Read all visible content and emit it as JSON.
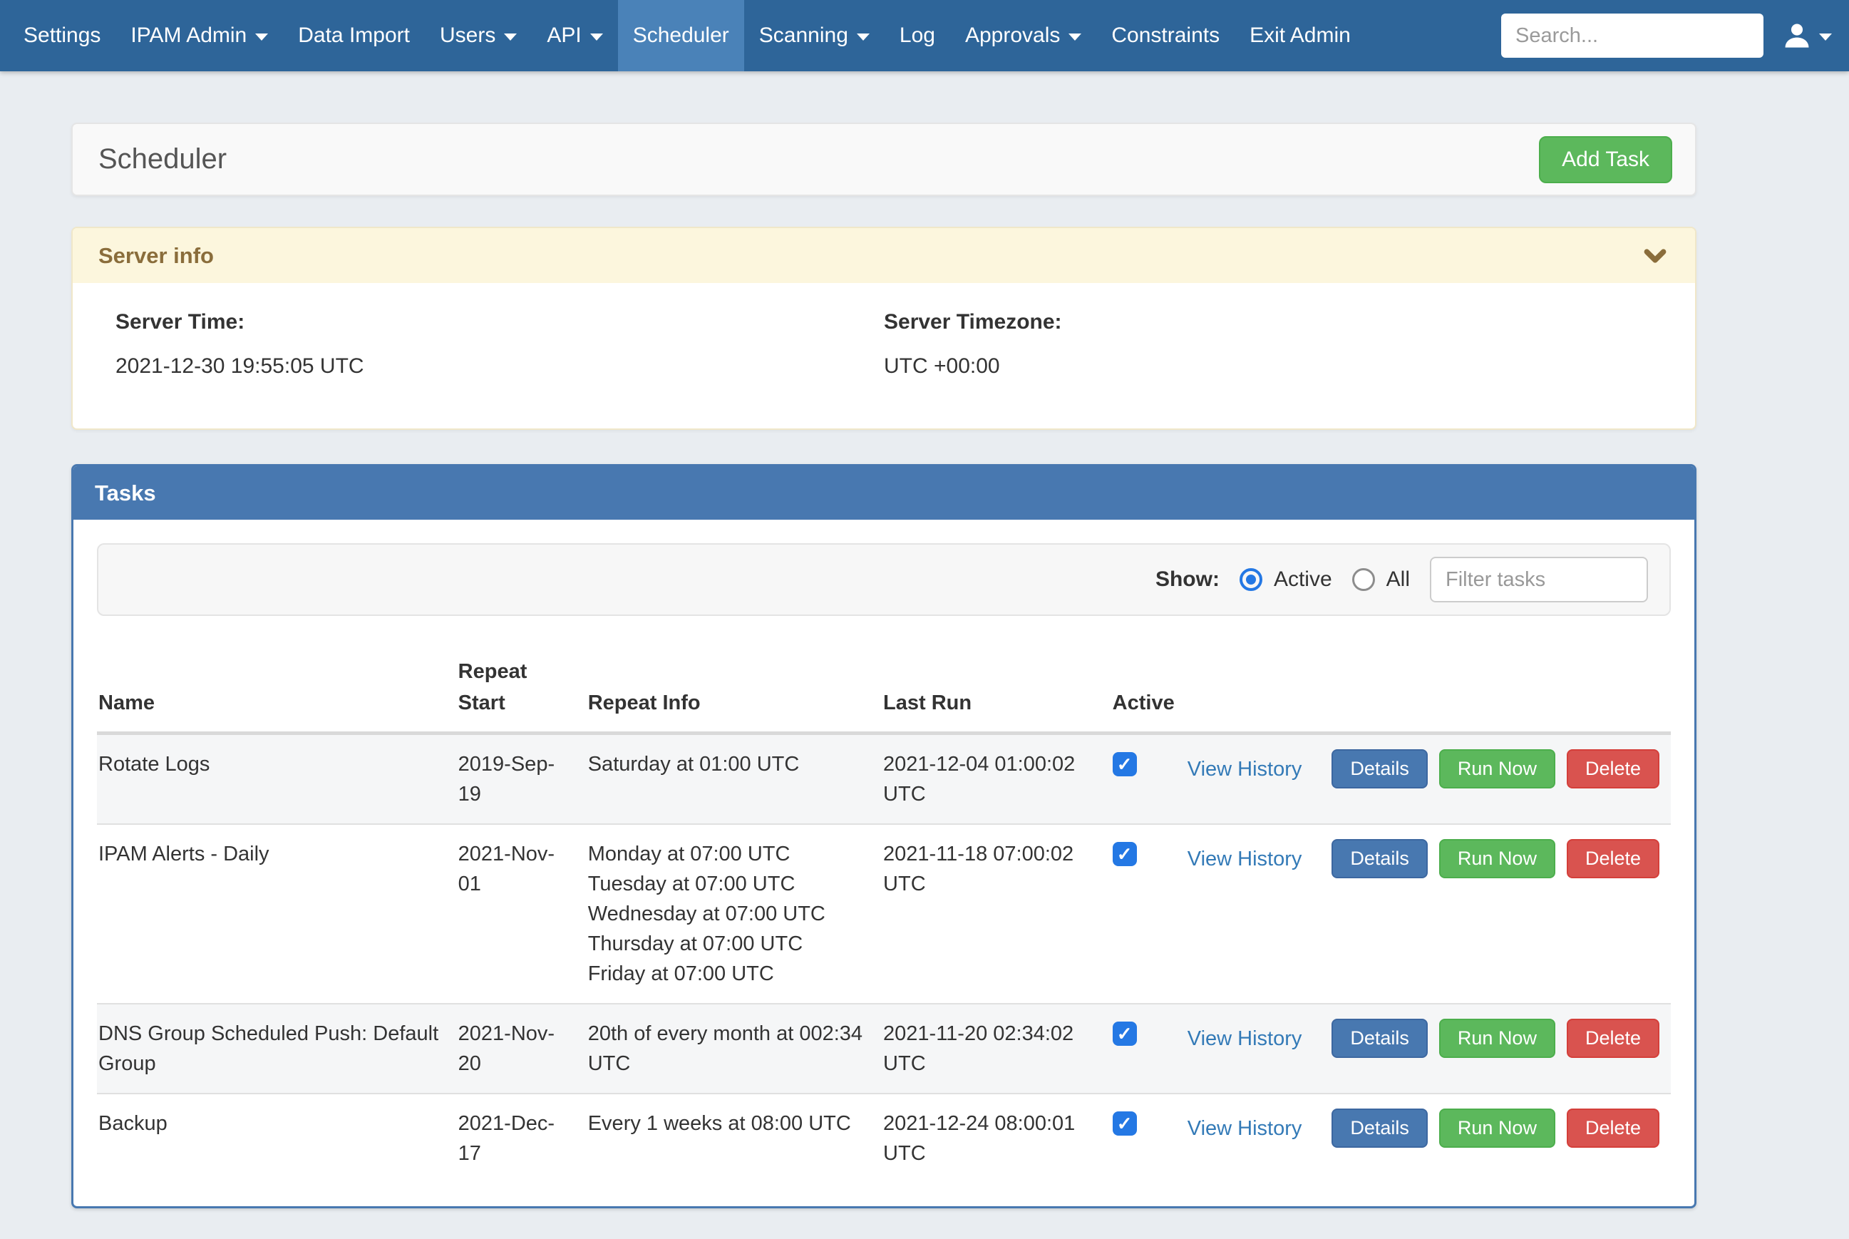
{
  "nav": {
    "items": [
      {
        "label": "Settings",
        "dropdown": false,
        "active": false
      },
      {
        "label": "IPAM Admin",
        "dropdown": true,
        "active": false
      },
      {
        "label": "Data Import",
        "dropdown": false,
        "active": false
      },
      {
        "label": "Users",
        "dropdown": true,
        "active": false
      },
      {
        "label": "API",
        "dropdown": true,
        "active": false
      },
      {
        "label": "Scheduler",
        "dropdown": false,
        "active": true
      },
      {
        "label": "Scanning",
        "dropdown": true,
        "active": false
      },
      {
        "label": "Log",
        "dropdown": false,
        "active": false
      },
      {
        "label": "Approvals",
        "dropdown": true,
        "active": false
      },
      {
        "label": "Constraints",
        "dropdown": false,
        "active": false
      },
      {
        "label": "Exit Admin",
        "dropdown": false,
        "active": false
      }
    ],
    "search_placeholder": "Search..."
  },
  "page": {
    "title": "Scheduler",
    "add_task_label": "Add Task"
  },
  "server_info": {
    "title": "Server info",
    "time_label": "Server Time:",
    "time_value": "2021-12-30 19:55:05 UTC",
    "timezone_label": "Server Timezone:",
    "timezone_value": "UTC +00:00"
  },
  "tasks": {
    "title": "Tasks",
    "show_label": "Show:",
    "radio_active_label": "Active",
    "radio_all_label": "All",
    "show_selected": "Active",
    "filter_placeholder": "Filter tasks",
    "columns": {
      "name": "Name",
      "repeat_start": "Repeat Start",
      "repeat_info": "Repeat Info",
      "last_run": "Last Run",
      "active": "Active"
    },
    "view_history_label": "View History",
    "details_label": "Details",
    "run_now_label": "Run Now",
    "delete_label": "Delete",
    "rows": [
      {
        "name": "Rotate Logs",
        "repeat_start": "2019-Sep-19",
        "repeat_info": [
          "Saturday at 01:00 UTC"
        ],
        "last_run": "2021-12-04 01:00:02 UTC",
        "active": true
      },
      {
        "name": "IPAM Alerts - Daily",
        "repeat_start": "2021-Nov-01",
        "repeat_info": [
          "Monday at 07:00 UTC",
          "Tuesday at 07:00 UTC",
          "Wednesday at 07:00 UTC",
          "Thursday at 07:00 UTC",
          "Friday at 07:00 UTC"
        ],
        "last_run": "2021-11-18 07:00:02 UTC",
        "active": true
      },
      {
        "name": "DNS Group Scheduled Push: Default Group",
        "repeat_start": "2021-Nov-20",
        "repeat_info": [
          "20th of every month at 002:34 UTC"
        ],
        "last_run": "2021-11-20 02:34:02 UTC",
        "active": true
      },
      {
        "name": "Backup",
        "repeat_start": "2021-Dec-17",
        "repeat_info": [
          "Every 1 weeks at 08:00 UTC"
        ],
        "last_run": "2021-12-24 08:00:01 UTC",
        "active": true
      }
    ]
  },
  "colors": {
    "page_bg": "#e9edf1",
    "navbar_bg": "#2e6599",
    "navbar_active_bg": "#4a82b8",
    "panel_blue": "#4878b0",
    "green": "#5cb85c",
    "red": "#d9534f",
    "link_blue": "#337ab7",
    "warning_bg": "#fcf6dd",
    "warning_text": "#8a6d3b",
    "checkbox_blue": "#2478e4",
    "radio_blue": "#2478e4"
  }
}
